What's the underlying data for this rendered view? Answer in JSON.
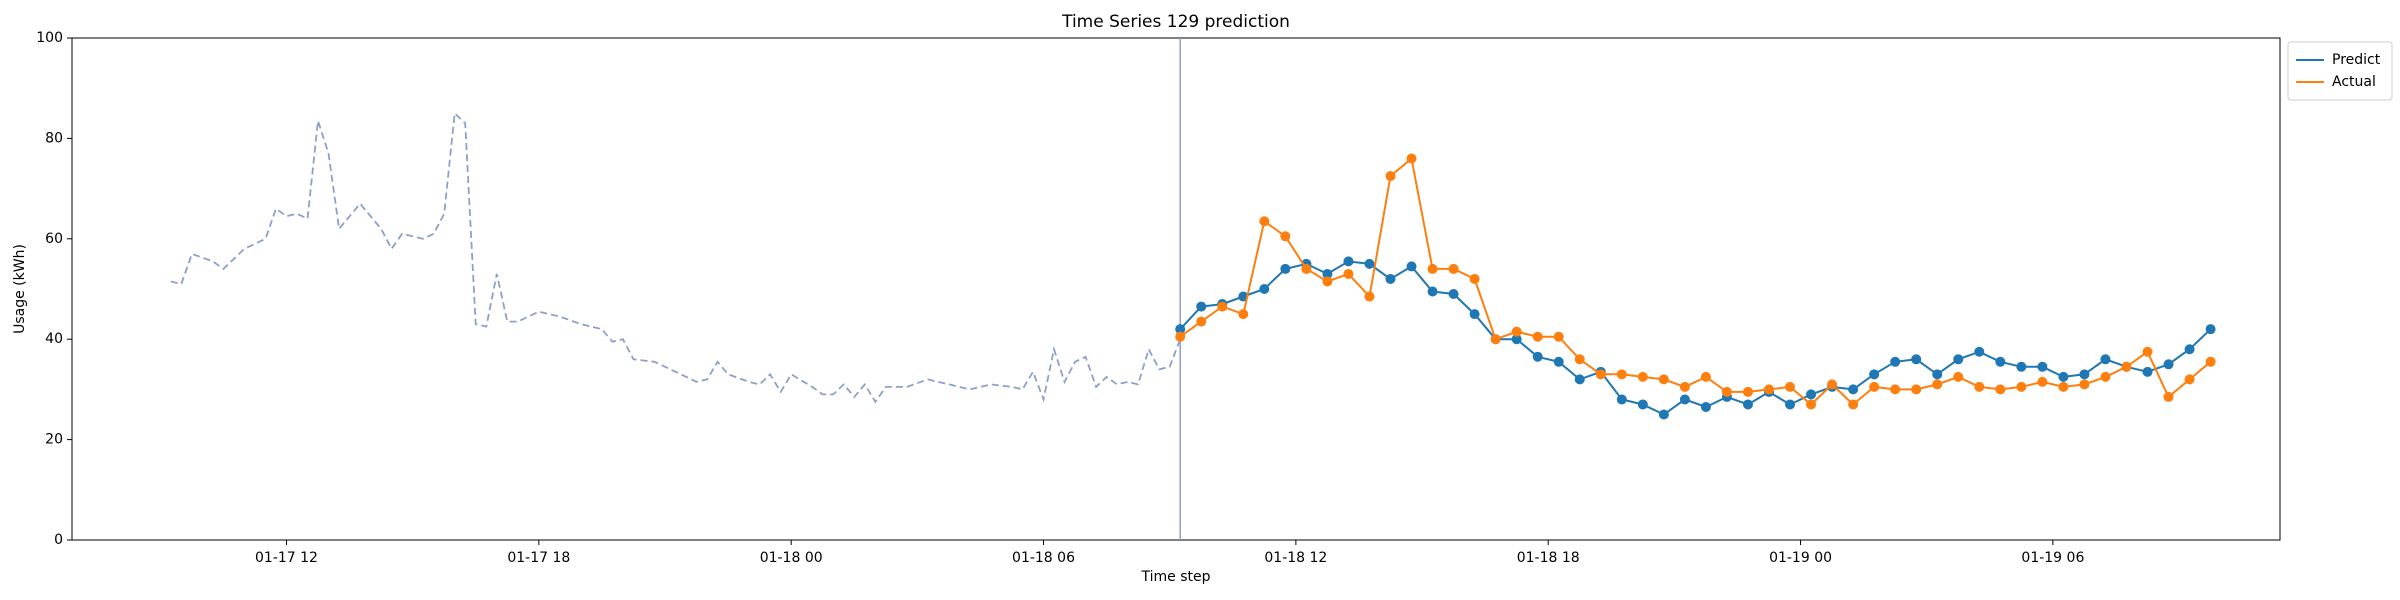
{
  "chart_data": {
    "type": "line",
    "title": "Time Series 129 prediction",
    "x_label": "Time step",
    "y_label": "Usage (kWh)",
    "xlim": [
      6.9,
      59.4
    ],
    "ylim": [
      0,
      100
    ],
    "xticks": [
      {
        "value": 12,
        "label": "01-17 12"
      },
      {
        "value": 18,
        "label": "01-17 18"
      },
      {
        "value": 24,
        "label": "01-18 00"
      },
      {
        "value": 30,
        "label": "01-18 06"
      },
      {
        "value": 36,
        "label": "01-18 12"
      },
      {
        "value": 42,
        "label": "01-18 18"
      },
      {
        "value": 48,
        "label": "01-19 00"
      },
      {
        "value": 54,
        "label": "01-19 06"
      }
    ],
    "yticks": [
      0,
      20,
      40,
      60,
      80,
      100
    ],
    "vline": 33.25,
    "vline_color": "#8da0cb",
    "legend": "upper right outside",
    "x": [
      33.25,
      33.75,
      34.25,
      34.75,
      35.25,
      35.75,
      36.25,
      36.75,
      37.25,
      37.75,
      38.25,
      38.75,
      39.25,
      39.75,
      40.25,
      40.75,
      41.25,
      41.75,
      42.25,
      42.75,
      43.25,
      43.75,
      44.25,
      44.75,
      45.25,
      45.75,
      46.25,
      46.75,
      47.25,
      47.75,
      48.25,
      48.75,
      49.25,
      49.75,
      50.25,
      50.75,
      51.25,
      51.75,
      52.25,
      52.75,
      53.25,
      53.75,
      54.25,
      54.75,
      55.25,
      55.75,
      56.25,
      56.75,
      57.25,
      57.75
    ],
    "history": {
      "color": "#8da0cb",
      "dashed": true,
      "x": [
        9.25,
        9.5,
        9.75,
        10.25,
        10.5,
        11,
        11.5,
        11.75,
        12,
        12.25,
        12.5,
        12.75,
        13,
        13.25,
        13.75,
        14.25,
        14.5,
        14.75,
        15.25,
        15.5,
        15.75,
        16,
        16.25,
        16.5,
        16.75,
        17,
        17.25,
        17.5,
        18,
        18.5,
        19,
        19.5,
        19.75,
        20,
        20.25,
        20.75,
        21.25,
        21.75,
        22,
        22.25,
        22.5,
        23,
        23.25,
        23.5,
        23.75,
        24,
        24.5,
        24.75,
        25,
        25.25,
        25.5,
        25.75,
        26,
        26.25,
        26.75,
        27.25,
        27.75,
        28.25,
        28.75,
        29.25,
        29.5,
        29.75,
        30,
        30.25,
        30.5,
        30.75,
        31,
        31.25,
        31.5,
        31.75,
        32,
        32.25,
        32.5,
        32.75,
        33,
        33.25
      ],
      "values": [
        51.5,
        51,
        57,
        55.5,
        54,
        58,
        60,
        66,
        64.5,
        65,
        64,
        83.5,
        77,
        62,
        67,
        62,
        58,
        61,
        60,
        61,
        65,
        85,
        83,
        43,
        42.5,
        53,
        43.5,
        43.5,
        45.5,
        44.5,
        43,
        42,
        39.5,
        40,
        36,
        35.5,
        33.5,
        31.5,
        32,
        35.5,
        33,
        31.5,
        31,
        33,
        29.5,
        33,
        30.5,
        29,
        29,
        31,
        28.5,
        31,
        27.5,
        30.5,
        30.5,
        32,
        31,
        30,
        31,
        30.5,
        30,
        33.5,
        28,
        38,
        31.5,
        35.5,
        36.5,
        30.5,
        32.5,
        31,
        31.5,
        31,
        38,
        34,
        34.5,
        40
      ]
    },
    "series": [
      {
        "name": "Predict",
        "color": "#1f77b4",
        "values": [
          42,
          46.5,
          47,
          48.5,
          50,
          54,
          55,
          53,
          55.5,
          55,
          52,
          54.5,
          49.5,
          49,
          45,
          40,
          40,
          36.5,
          35.5,
          32,
          33.5,
          28,
          27,
          25,
          28,
          26.5,
          28.5,
          27,
          29.5,
          27,
          29,
          30.5,
          30,
          33,
          35.5,
          36,
          33,
          36,
          37.5,
          35.5,
          34.5,
          34.5,
          32.5,
          33,
          36,
          34.5,
          33.5,
          35,
          38,
          42
        ]
      },
      {
        "name": "Actual",
        "color": "#ff7f0e",
        "values": [
          40.5,
          43.5,
          46.5,
          45,
          63.5,
          60.5,
          54,
          51.5,
          53,
          48.5,
          72.5,
          76,
          54,
          54,
          52,
          40,
          41.5,
          40.5,
          40.5,
          36,
          33,
          33,
          32.5,
          32,
          30.5,
          32.5,
          29.5,
          29.5,
          30,
          30.5,
          27,
          31,
          27,
          30.5,
          30,
          30,
          31,
          32.5,
          30.5,
          30,
          30.5,
          31.5,
          30.5,
          31,
          32.5,
          34.5,
          37.5,
          28.5,
          32,
          35.5
        ]
      }
    ]
  }
}
